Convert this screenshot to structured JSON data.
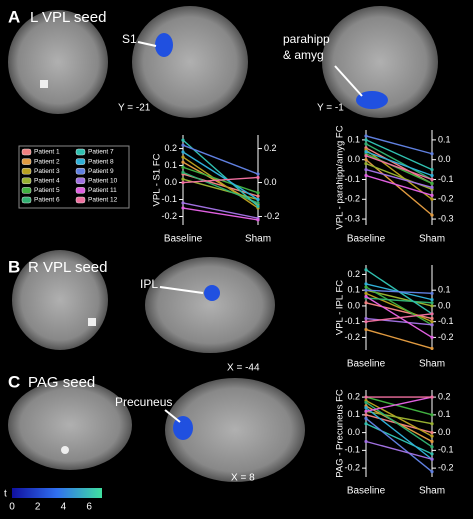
{
  "panels": [
    {
      "letter": "A",
      "title": "L VPL seed",
      "labels": [
        "S1",
        "parahipp",
        "& amyg"
      ],
      "coords": [
        "Y = -21",
        "Y = -1"
      ]
    },
    {
      "letter": "B",
      "title": "R VPL seed",
      "labels": [
        "IPL"
      ],
      "coords": [
        "X = -44"
      ]
    },
    {
      "letter": "C",
      "title": "PAG seed",
      "labels": [
        "Precuneus"
      ],
      "coords": [
        "X = 8"
      ]
    }
  ],
  "colorbar": {
    "label": "t",
    "lim": [
      0,
      7
    ],
    "ticks": [
      0,
      2,
      4,
      6
    ]
  },
  "chart_data": [
    {
      "type": "line",
      "ylabel": "VPL - S1 FC",
      "categories": [
        "Baseline",
        "Sham"
      ],
      "ylim": [
        -0.25,
        0.28
      ],
      "yticks": [
        0.2,
        0.1,
        {
          "value": 0,
          "label": "0.0"
        },
        -0.1,
        -0.2
      ],
      "y2lim": [
        -0.25,
        0.28
      ],
      "y2ticks": [
        0.2,
        {
          "value": 0,
          "label": "0.0"
        },
        -0.2
      ],
      "series": [
        {
          "name": "Patient 1",
          "color": "#f08080",
          "values": [
            0.05,
            -0.08
          ]
        },
        {
          "name": "Patient 2",
          "color": "#e09a40",
          "values": [
            0.12,
            -0.13
          ]
        },
        {
          "name": "Patient 3",
          "color": "#b8a020",
          "values": [
            0.15,
            -0.15
          ]
        },
        {
          "name": "Patient 4",
          "color": "#98b030",
          "values": [
            0.02,
            -0.1
          ]
        },
        {
          "name": "Patient 5",
          "color": "#40b040",
          "values": [
            0.09,
            -0.06
          ]
        },
        {
          "name": "Patient 6",
          "color": "#30b070",
          "values": [
            0.06,
            -0.12
          ]
        },
        {
          "name": "Patient 7",
          "color": "#30c0b0",
          "values": [
            0.25,
            -0.14
          ]
        },
        {
          "name": "Patient 8",
          "color": "#30b0d8",
          "values": [
            0.18,
            -0.1
          ]
        },
        {
          "name": "Patient 9",
          "color": "#6080e0",
          "values": [
            0.22,
            0.05
          ]
        },
        {
          "name": "Patient 10",
          "color": "#a070e0",
          "values": [
            -0.12,
            -0.21
          ]
        },
        {
          "name": "Patient 11",
          "color": "#e060e0",
          "values": [
            -0.15,
            -0.22
          ]
        },
        {
          "name": "Patient 12",
          "color": "#f070a0",
          "values": [
            0.0,
            0.03
          ]
        }
      ]
    },
    {
      "type": "line",
      "ylabel": "VPL - parahipp/amyg FC",
      "categories": [
        "Baseline",
        "Sham"
      ],
      "ylim": [
        -0.33,
        0.15
      ],
      "yticks": [
        0.1,
        {
          "value": 0,
          "label": "0.0"
        },
        -0.1,
        -0.2,
        -0.3
      ],
      "y2lim": [
        -0.33,
        0.15
      ],
      "y2ticks": [
        0.1,
        {
          "value": 0,
          "label": "0.0"
        },
        -0.1,
        -0.2,
        -0.3
      ],
      "series": [
        {
          "name": "Patient 1",
          "color": "#f08080",
          "values": [
            0.06,
            -0.12
          ]
        },
        {
          "name": "Patient 2",
          "color": "#e09a40",
          "values": [
            0.0,
            -0.28
          ]
        },
        {
          "name": "Patient 3",
          "color": "#b8a020",
          "values": [
            0.05,
            -0.2
          ]
        },
        {
          "name": "Patient 4",
          "color": "#98b030",
          "values": [
            -0.02,
            -0.15
          ]
        },
        {
          "name": "Patient 5",
          "color": "#40b040",
          "values": [
            0.03,
            -0.12
          ]
        },
        {
          "name": "Patient 6",
          "color": "#30b070",
          "values": [
            0.08,
            -0.1
          ]
        },
        {
          "name": "Patient 7",
          "color": "#30c0b0",
          "values": [
            0.1,
            -0.05
          ]
        },
        {
          "name": "Patient 8",
          "color": "#30b0d8",
          "values": [
            0.04,
            -0.08
          ]
        },
        {
          "name": "Patient 9",
          "color": "#6080e0",
          "values": [
            0.12,
            0.03
          ]
        },
        {
          "name": "Patient 10",
          "color": "#a070e0",
          "values": [
            -0.05,
            -0.14
          ]
        },
        {
          "name": "Patient 11",
          "color": "#e060e0",
          "values": [
            -0.08,
            -0.18
          ]
        },
        {
          "name": "Patient 12",
          "color": "#f070a0",
          "values": [
            0.02,
            -0.1
          ]
        }
      ]
    },
    {
      "type": "line",
      "ylabel": "VPL - IPL FC",
      "categories": [
        "Baseline",
        "Sham"
      ],
      "ylim": [
        -0.28,
        0.26
      ],
      "yticks": [
        0.2,
        0.1,
        {
          "value": 0,
          "label": "0.0"
        },
        -0.1,
        -0.2
      ],
      "y2lim": [
        -0.28,
        0.26
      ],
      "y2ticks": [
        0.1,
        {
          "value": 0,
          "label": "0.0"
        },
        -0.1,
        -0.2
      ],
      "series": [
        {
          "name": "Patient 1",
          "color": "#f08080",
          "values": [
            0.02,
            -0.08
          ]
        },
        {
          "name": "Patient 2",
          "color": "#e09a40",
          "values": [
            -0.15,
            -0.27
          ]
        },
        {
          "name": "Patient 3",
          "color": "#b8a020",
          "values": [
            0.08,
            -0.1
          ]
        },
        {
          "name": "Patient 4",
          "color": "#98b030",
          "values": [
            0.1,
            0.0
          ]
        },
        {
          "name": "Patient 5",
          "color": "#40b040",
          "values": [
            0.12,
            -0.12
          ]
        },
        {
          "name": "Patient 6",
          "color": "#30b070",
          "values": [
            0.05,
            0.02
          ]
        },
        {
          "name": "Patient 7",
          "color": "#30c0b0",
          "values": [
            0.23,
            -0.05
          ]
        },
        {
          "name": "Patient 8",
          "color": "#30b0d8",
          "values": [
            0.14,
            0.04
          ]
        },
        {
          "name": "Patient 9",
          "color": "#6080e0",
          "values": [
            0.1,
            0.08
          ]
        },
        {
          "name": "Patient 10",
          "color": "#a070e0",
          "values": [
            -0.08,
            -0.12
          ]
        },
        {
          "name": "Patient 11",
          "color": "#e060e0",
          "values": [
            0.06,
            -0.2
          ]
        },
        {
          "name": "Patient 12",
          "color": "#f070a0",
          "values": [
            -0.1,
            -0.05
          ]
        }
      ]
    },
    {
      "type": "line",
      "ylabel": "PAG - Precuneus FC",
      "categories": [
        "Baseline",
        "Sham"
      ],
      "ylim": [
        -0.25,
        0.24
      ],
      "yticks": [
        0.2,
        0.1,
        {
          "value": 0,
          "label": "0.0"
        },
        -0.1,
        -0.2
      ],
      "y2lim": [
        -0.25,
        0.24
      ],
      "y2ticks": [
        0.2,
        0.1,
        {
          "value": 0,
          "label": "0.0"
        },
        -0.1,
        -0.2
      ],
      "series": [
        {
          "name": "Patient 1",
          "color": "#f08080",
          "values": [
            0.1,
            0.0
          ]
        },
        {
          "name": "Patient 2",
          "color": "#e09a40",
          "values": [
            0.15,
            -0.05
          ]
        },
        {
          "name": "Patient 3",
          "color": "#b8a020",
          "values": [
            0.18,
            -0.02
          ]
        },
        {
          "name": "Patient 4",
          "color": "#98b030",
          "values": [
            0.12,
            0.05
          ]
        },
        {
          "name": "Patient 5",
          "color": "#40b040",
          "values": [
            0.2,
            0.1
          ]
        },
        {
          "name": "Patient 6",
          "color": "#30b070",
          "values": [
            0.17,
            -0.08
          ]
        },
        {
          "name": "Patient 7",
          "color": "#30c0b0",
          "values": [
            0.05,
            -0.12
          ]
        },
        {
          "name": "Patient 8",
          "color": "#30b0d8",
          "values": [
            0.14,
            -0.15
          ]
        },
        {
          "name": "Patient 9",
          "color": "#6080e0",
          "values": [
            0.08,
            -0.22
          ]
        },
        {
          "name": "Patient 10",
          "color": "#a070e0",
          "values": [
            -0.05,
            -0.15
          ]
        },
        {
          "name": "Patient 11",
          "color": "#e060e0",
          "values": [
            0.12,
            0.2
          ]
        },
        {
          "name": "Patient 12",
          "color": "#f070a0",
          "values": [
            0.2,
            0.2
          ]
        }
      ]
    }
  ]
}
